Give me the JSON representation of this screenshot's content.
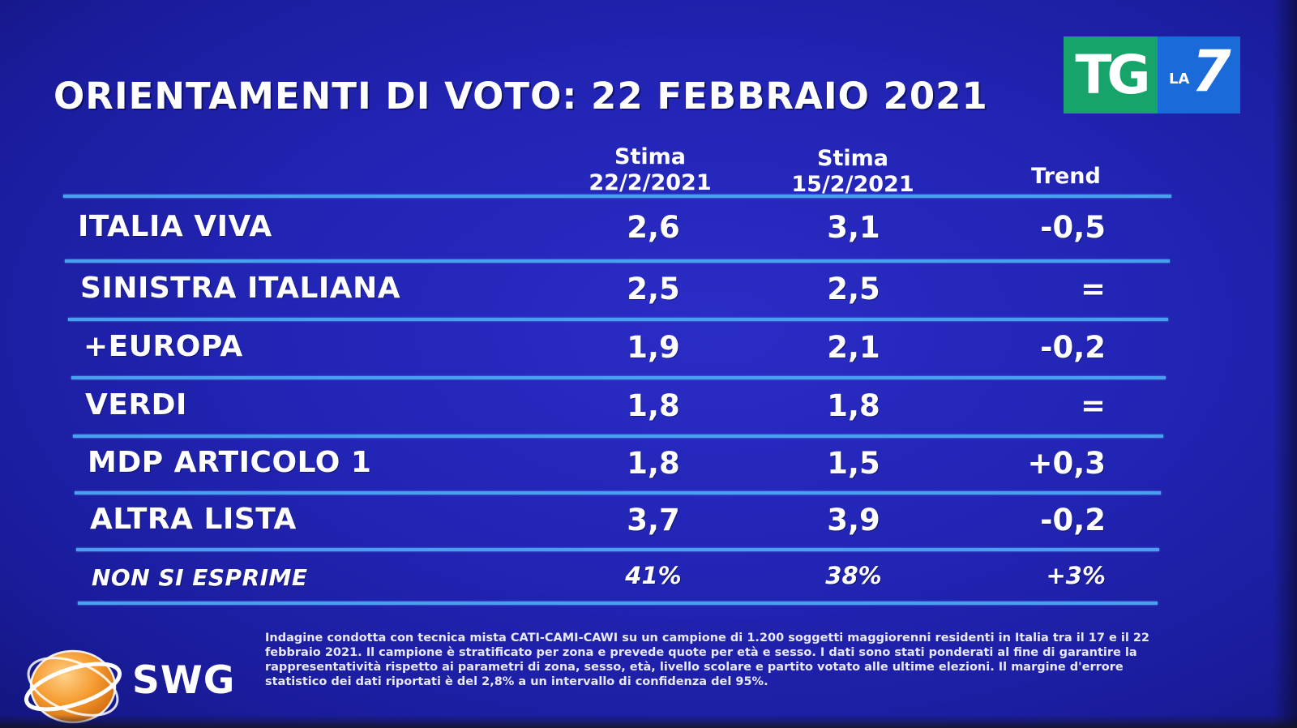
{
  "title": "ORIENTAMENTI DI VOTO: 22 FEBBRAIO 2021",
  "logo": {
    "tg": "TG",
    "la": "LA",
    "seven": "7",
    "colors": {
      "tg_bg": "#17a46a",
      "la7_bg": "#1a6ad9"
    }
  },
  "columns": {
    "current_line1": "Stima",
    "current_line2": "22/2/2021",
    "previous_line1": "Stima",
    "previous_line2": "15/2/2021",
    "trend": "Trend"
  },
  "chart_data": {
    "type": "table",
    "title": "ORIENTAMENTI DI VOTO: 22 FEBBRAIO 2021",
    "headers": [
      "",
      "Stima 22/2/2021",
      "Stima 15/2/2021",
      "Trend"
    ],
    "rows": [
      {
        "party": "ITALIA VIVA",
        "current": "2,6",
        "previous": "3,1",
        "trend": "-0,5"
      },
      {
        "party": "SINISTRA ITALIANA",
        "current": "2,5",
        "previous": "2,5",
        "trend": "="
      },
      {
        "party": "+EUROPA",
        "current": "1,9",
        "previous": "2,1",
        "trend": "-0,2"
      },
      {
        "party": "VERDI",
        "current": "1,8",
        "previous": "1,8",
        "trend": "="
      },
      {
        "party": "MDP ARTICOLO 1",
        "current": "1,8",
        "previous": "1,5",
        "trend": "+0,3"
      },
      {
        "party": "ALTRA LISTA",
        "current": "3,7",
        "previous": "3,9",
        "trend": "-0,2"
      },
      {
        "party": "NON SI ESPRIME",
        "current": "41%",
        "previous": "38%",
        "trend": "+3%"
      }
    ]
  },
  "source": {
    "brand": "SWG",
    "footnote": "Indagine condotta con tecnica mista CATI-CAMI-CAWI su un campione di 1.200 soggetti maggiorenni residenti in Italia tra il 17 e il 22 febbraio 2021. Il campione è stratificato per zona e prevede quote per età e sesso. I dati sono stati ponderati al fine di garantire la rappresentatività rispetto ai parametri di zona, sesso, età, livello scolare e partito votato alle ultime elezioni. Il margine d'errore statistico dei dati riportati è del 2,8% a un intervallo di confidenza del 95%."
  },
  "colors": {
    "background": "#2224b4",
    "rule": "#4aa0f0",
    "text": "#ffffff"
  }
}
